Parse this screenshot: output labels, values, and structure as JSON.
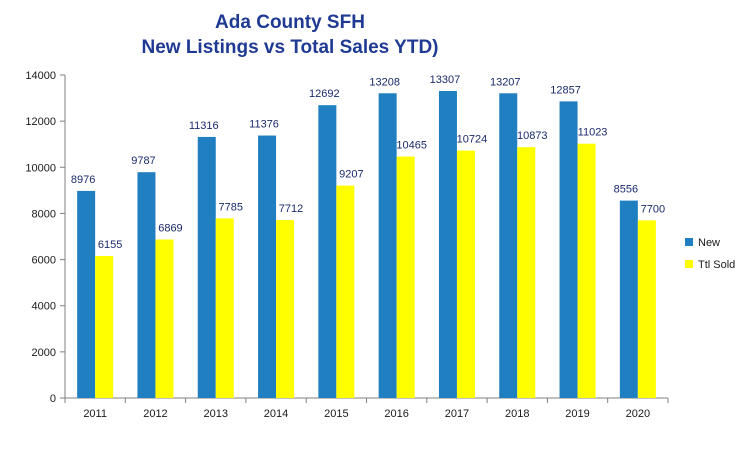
{
  "chart_data": {
    "type": "bar",
    "title_lines": [
      "Ada County SFH",
      "New Listings vs Total Sales YTD)"
    ],
    "categories": [
      "2011",
      "2012",
      "2013",
      "2014",
      "2015",
      "2016",
      "2017",
      "2018",
      "2019",
      "2020"
    ],
    "series": [
      {
        "name": "New",
        "color": "#1f7fc0",
        "values": [
          8976,
          9787,
          11316,
          11376,
          12692,
          13208,
          13307,
          13207,
          12857,
          8556
        ]
      },
      {
        "name": "Ttl Sold",
        "color": "#ffff00",
        "values": [
          6155,
          6869,
          7785,
          7712,
          9207,
          10465,
          10724,
          10873,
          11023,
          7700
        ]
      }
    ],
    "ylim": [
      0,
      14000
    ],
    "yticks": [
      0,
      2000,
      4000,
      6000,
      8000,
      10000,
      12000,
      14000
    ],
    "xlabel": "",
    "ylabel": "",
    "grid": false,
    "legend_position": "right"
  }
}
